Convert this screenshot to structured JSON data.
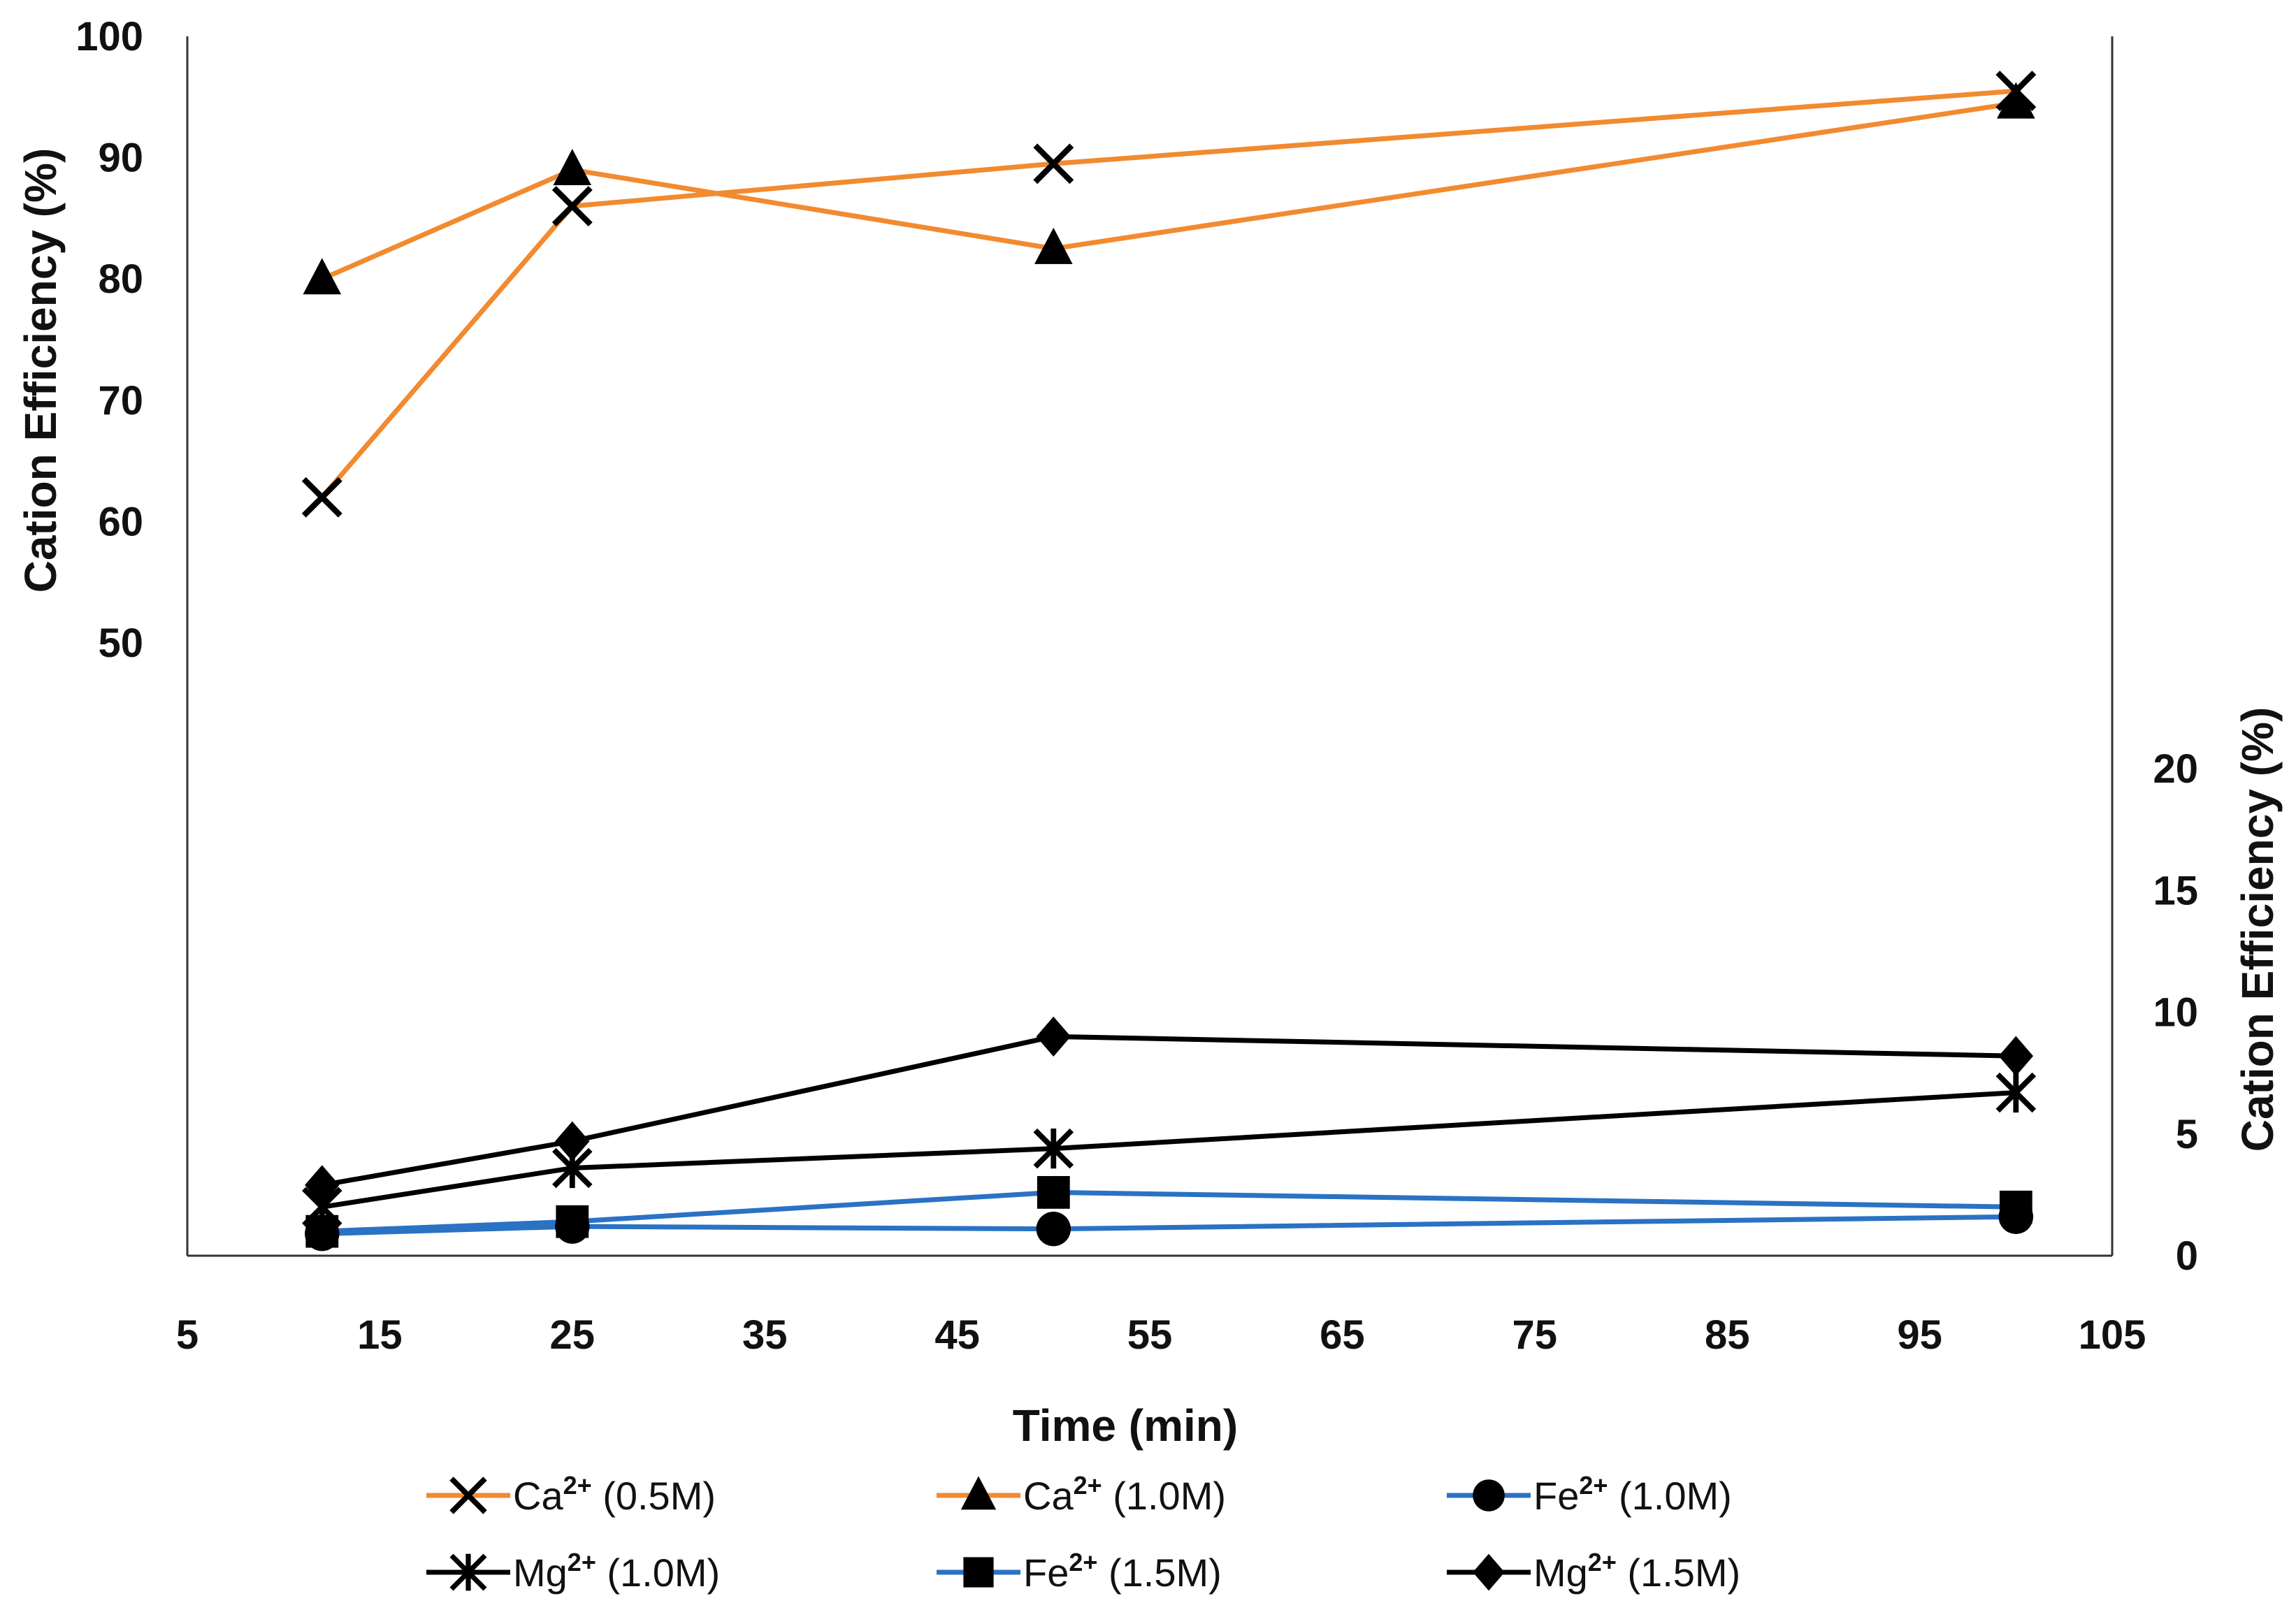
{
  "chart_data": {
    "type": "line",
    "title": "",
    "xlabel": "Time (min)",
    "ylabel": "Cation Efficiency (%)",
    "y2label": "Cation Efficiency (%)",
    "xlim": [
      5,
      105
    ],
    "xticks": [
      "5",
      "15",
      "25",
      "35",
      "45",
      "55",
      "65",
      "75",
      "85",
      "95",
      "105"
    ],
    "ylim_left_ticks": [
      "50",
      "60",
      "70",
      "80",
      "90",
      "100"
    ],
    "ylim_right_ticks": [
      "0",
      "5",
      "10",
      "15",
      "20"
    ],
    "grid": false,
    "legend_position": "bottom",
    "x": [
      12,
      25,
      50,
      100
    ],
    "series": [
      {
        "name": "Ca",
        "sup": "2+",
        "conc": " (0.5M)",
        "axis": "left",
        "color": "#F28A30",
        "marker": "x",
        "values": [
          62,
          86,
          89.5,
          95.5
        ]
      },
      {
        "name": "Ca",
        "sup": "2+",
        "conc": " (1.0M)",
        "axis": "left",
        "color": "#F28A30",
        "marker": "triangle",
        "values": [
          80,
          89,
          82.5,
          94.5
        ]
      },
      {
        "name": "Fe",
        "sup": "2+",
        "conc": " (1.0M)",
        "axis": "right",
        "color": "#2A72C4",
        "marker": "circle",
        "values": [
          0.9,
          1.2,
          1.1,
          1.6
        ]
      },
      {
        "name": "Mg",
        "sup": "2+",
        "conc": " (1.0M)",
        "axis": "right",
        "color": "#000000",
        "marker": "star",
        "values": [
          2.0,
          3.6,
          4.4,
          6.7
        ]
      },
      {
        "name": "Fe",
        "sup": "2+",
        "conc": " (1.5M)",
        "axis": "right",
        "color": "#2A72C4",
        "marker": "square",
        "values": [
          1.0,
          1.4,
          2.6,
          2.0
        ]
      },
      {
        "name": "Mg",
        "sup": "2+",
        "conc": " (1.5M)",
        "axis": "right",
        "color": "#000000",
        "marker": "diamond",
        "values": [
          2.9,
          4.7,
          9.0,
          8.2
        ]
      }
    ]
  }
}
